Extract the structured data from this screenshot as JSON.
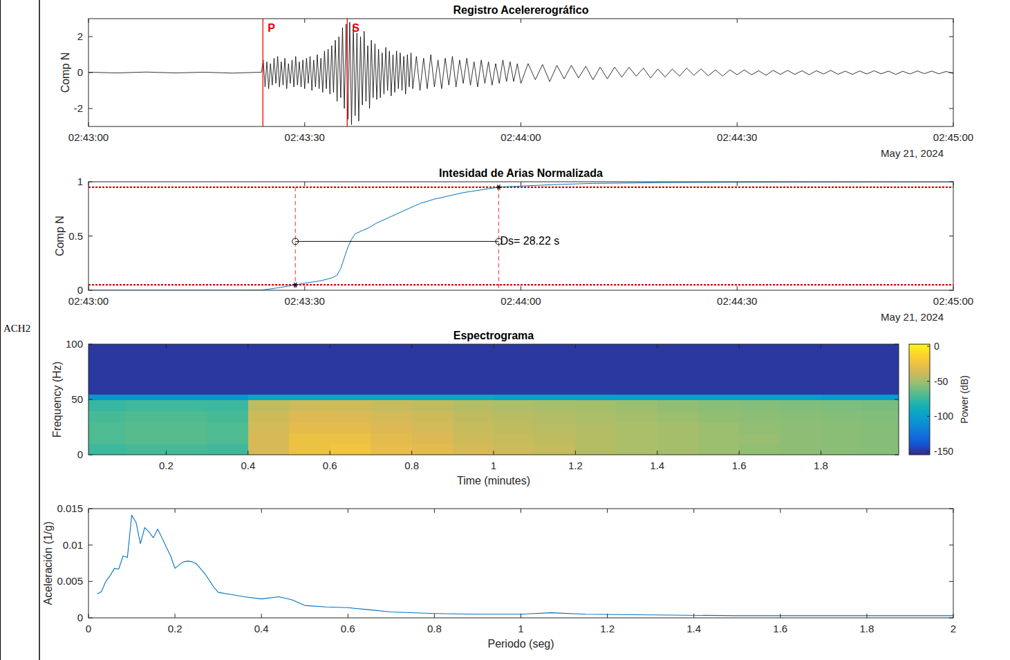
{
  "station": "ACH2",
  "chart_data": [
    {
      "type": "line",
      "title": "Registro Acelererográfico",
      "y_label": "Comp N",
      "date_label": "May 21, 2024",
      "xlim": [
        0,
        120
      ],
      "xticks": [
        {
          "value": 0,
          "label": "02:43:00"
        },
        {
          "value": 30,
          "label": "02:43:30"
        },
        {
          "value": 60,
          "label": "02:44:00"
        },
        {
          "value": 90,
          "label": "02:44:30"
        },
        {
          "value": 120,
          "label": "02:45:00"
        }
      ],
      "ylim": [
        -3,
        3
      ],
      "yticks": [
        -2,
        0,
        2
      ],
      "series": [
        {
          "color": "#000000",
          "x": [
            0,
            4,
            8,
            12,
            16,
            20,
            24,
            24.25,
            24.5,
            24.75,
            25,
            25.25,
            25.5,
            25.75,
            26,
            26.25,
            26.5,
            26.75,
            27,
            27.25,
            27.5,
            27.75,
            28,
            28.25,
            28.5,
            28.75,
            29,
            29.25,
            29.5,
            29.75,
            30,
            30.25,
            30.5,
            30.75,
            31,
            31.25,
            31.5,
            31.75,
            32,
            32.25,
            32.5,
            32.75,
            33,
            33.25,
            33.5,
            33.75,
            34,
            34.25,
            34.5,
            34.75,
            35,
            35.25,
            35.5,
            35.75,
            36,
            36.25,
            36.5,
            36.75,
            37,
            37.25,
            37.5,
            37.75,
            38,
            38.25,
            38.5,
            38.75,
            39,
            39.25,
            39.5,
            39.75,
            40,
            40.25,
            40.5,
            40.75,
            41,
            41.25,
            41.5,
            41.75,
            42,
            42.25,
            42.5,
            42.75,
            43,
            43.25,
            43.5,
            43.75,
            44,
            44.25,
            44.5,
            44.75,
            45,
            45.5,
            46,
            46.5,
            47,
            47.5,
            48,
            48.5,
            49,
            49.5,
            50,
            50.5,
            51,
            51.5,
            52,
            52.5,
            53,
            53.5,
            54,
            54.5,
            55,
            55.5,
            56,
            56.5,
            57,
            57.5,
            58,
            58.5,
            59,
            59.5,
            60,
            61,
            62,
            63,
            64,
            65,
            66,
            67,
            68,
            69,
            70,
            71,
            72,
            73,
            74,
            75,
            76,
            77,
            78,
            79,
            80,
            81,
            82,
            83,
            84,
            85,
            86,
            87,
            88,
            89,
            90,
            91,
            92,
            93,
            94,
            95,
            96,
            97,
            98,
            99,
            100,
            101,
            102,
            103,
            104,
            105,
            106,
            107,
            108,
            109,
            110,
            111,
            112,
            113,
            114,
            115,
            116,
            117,
            118,
            119,
            120
          ],
          "values": [
            0.02,
            -0.02,
            0.03,
            -0.02,
            0.02,
            -0.03,
            0.02,
            0.7,
            -0.8,
            0.6,
            -0.9,
            0.5,
            -0.7,
            0.8,
            -0.6,
            0.9,
            -0.8,
            0.6,
            -0.7,
            0.8,
            -0.9,
            0.5,
            -0.6,
            0.7,
            -0.8,
            0.9,
            -0.7,
            0.6,
            -0.8,
            0.7,
            -0.9,
            0.8,
            -0.6,
            0.9,
            -1.0,
            0.7,
            -0.8,
            1.0,
            -0.9,
            0.8,
            -1.1,
            1.2,
            -0.9,
            1.3,
            -1.2,
            1.5,
            -1.1,
            1.8,
            -1.6,
            2.0,
            -1.4,
            2.5,
            -2.0,
            2.7,
            -2.6,
            2.8,
            -2.9,
            2.6,
            -2.4,
            2.2,
            -2.7,
            2.0,
            -1.8,
            2.3,
            -1.6,
            1.5,
            -2.0,
            1.8,
            -1.4,
            1.6,
            -1.5,
            1.3,
            -1.4,
            1.1,
            -1.2,
            1.4,
            -1.0,
            1.2,
            -1.3,
            1.0,
            -1.1,
            1.2,
            -0.9,
            1.1,
            -1.0,
            0.9,
            -1.2,
            1.0,
            -0.8,
            1.1,
            -0.9,
            0.9,
            -1.0,
            0.8,
            -0.9,
            1.0,
            -0.8,
            0.7,
            -0.9,
            0.8,
            -0.7,
            0.9,
            -0.8,
            0.7,
            -0.6,
            0.8,
            -0.7,
            0.6,
            -0.8,
            0.7,
            -0.6,
            0.6,
            -0.7,
            0.5,
            -0.6,
            0.7,
            -0.5,
            0.6,
            -0.5,
            0.5,
            -0.6,
            0.5,
            -0.4,
            0.45,
            -0.5,
            0.4,
            -0.35,
            0.4,
            -0.3,
            0.35,
            -0.4,
            0.3,
            -0.35,
            0.3,
            -0.25,
            0.3,
            -0.2,
            0.25,
            -0.3,
            0.2,
            -0.25,
            0.2,
            -0.2,
            0.25,
            -0.15,
            0.2,
            -0.18,
            0.15,
            -0.2,
            0.15,
            -0.12,
            0.15,
            -0.12,
            0.1,
            -0.15,
            0.12,
            -0.1,
            0.12,
            -0.1,
            0.1,
            -0.12,
            0.1,
            -0.08,
            0.12,
            -0.1,
            0.08,
            -0.1,
            0.09,
            -0.08,
            0.1,
            -0.07,
            0.08,
            -0.1,
            0.07,
            -0.08,
            0.09,
            -0.06,
            0.08,
            -0.07,
            0.06,
            -0.05
          ]
        }
      ],
      "phases": [
        {
          "label": "P",
          "x": 24.2
        },
        {
          "label": "S",
          "x": 35.9
        }
      ]
    },
    {
      "type": "line",
      "title": "Intesidad de Arias Normalizada",
      "y_label": "Comp N",
      "date_label": "May 21, 2024",
      "xlim": [
        0,
        120
      ],
      "xticks": [
        {
          "value": 0,
          "label": "02:43:00"
        },
        {
          "value": 30,
          "label": "02:43:30"
        },
        {
          "value": 60,
          "label": "02:44:00"
        },
        {
          "value": 90,
          "label": "02:44:30"
        },
        {
          "value": 120,
          "label": "02:45:00"
        }
      ],
      "ylim": [
        0,
        1
      ],
      "yticks": [
        0,
        0.5,
        1
      ],
      "series": [
        {
          "color": "#0072bd",
          "x": [
            0,
            20,
            24,
            25,
            26,
            27,
            28,
            28.7,
            30,
            32,
            33,
            34,
            34.5,
            35,
            35.5,
            36,
            36.5,
            37,
            38,
            39,
            40,
            42,
            44,
            46,
            48,
            50,
            52,
            54,
            56.92,
            60,
            65,
            70,
            80,
            90,
            100,
            120
          ],
          "values": [
            0,
            0,
            0.002,
            0.01,
            0.02,
            0.03,
            0.042,
            0.05,
            0.065,
            0.085,
            0.1,
            0.12,
            0.14,
            0.2,
            0.3,
            0.4,
            0.47,
            0.52,
            0.55,
            0.58,
            0.62,
            0.68,
            0.74,
            0.8,
            0.84,
            0.87,
            0.9,
            0.92,
            0.95,
            0.96,
            0.975,
            0.985,
            0.992,
            0.996,
            0.998,
            1
          ]
        }
      ],
      "thresholds": [
        0.05,
        0.95
      ],
      "duration": {
        "start": 28.7,
        "end": 56.92,
        "level": 0.45,
        "label": "Ds= 28.22 s"
      }
    },
    {
      "type": "heatmap",
      "title": "Espectrograma",
      "x_label": "Time (minutes)",
      "y_label": "Frequency (Hz)",
      "xlim": [
        0.01,
        1.99
      ],
      "xticks": [
        0.2,
        0.4,
        0.6,
        0.8,
        1,
        1.2,
        1.4,
        1.6,
        1.8
      ],
      "ylim": [
        0,
        100
      ],
      "yticks": [
        0,
        50,
        100
      ],
      "x_edges": [
        0.01,
        0.1,
        0.2,
        0.3,
        0.4,
        0.5,
        0.6,
        0.7,
        0.8,
        0.9,
        1,
        1.1,
        1.2,
        1.3,
        1.4,
        1.5,
        1.6,
        1.7,
        1.8,
        1.9,
        1.99
      ],
      "y_edges": [
        0,
        10,
        20,
        30,
        40,
        50,
        55,
        100
      ],
      "cells": [
        [
          -75,
          -72,
          -72,
          -74,
          -35,
          -25,
          -22,
          -28,
          -30,
          -35,
          -38,
          -40,
          -45,
          -48,
          -50,
          -52,
          -54,
          -55,
          -56,
          -57
        ],
        [
          -70,
          -68,
          -68,
          -70,
          -35,
          -25,
          -25,
          -30,
          -33,
          -38,
          -40,
          -42,
          -45,
          -48,
          -50,
          -52,
          -53,
          -55,
          -56,
          -57
        ],
        [
          -70,
          -68,
          -68,
          -70,
          -36,
          -30,
          -30,
          -33,
          -36,
          -40,
          -42,
          -44,
          -46,
          -48,
          -50,
          -52,
          -54,
          -55,
          -56,
          -57
        ],
        [
          -72,
          -70,
          -70,
          -72,
          -38,
          -33,
          -34,
          -36,
          -38,
          -42,
          -44,
          -46,
          -48,
          -50,
          -52,
          -54,
          -55,
          -56,
          -57,
          -58
        ],
        [
          -76,
          -74,
          -74,
          -75,
          -42,
          -38,
          -38,
          -40,
          -42,
          -45,
          -47,
          -49,
          -50,
          -52,
          -54,
          -56,
          -57,
          -58,
          -59,
          -60
        ],
        [
          -105,
          -105,
          -105,
          -105,
          -95,
          -95,
          -95,
          -95,
          -95,
          -95,
          -98,
          -98,
          -98,
          -100,
          -100,
          -100,
          -100,
          -100,
          -102,
          -102
        ],
        [
          -150,
          -150,
          -150,
          -150,
          -150,
          -150,
          -150,
          -150,
          -150,
          -150,
          -150,
          -150,
          -150,
          -150,
          -150,
          -150,
          -150,
          -150,
          -150,
          -150
        ]
      ],
      "colorbar": {
        "label": "Power (dB)",
        "range": [
          -155,
          3
        ],
        "ticks": [
          -150,
          -100,
          -50,
          0
        ]
      }
    },
    {
      "type": "line",
      "x_label": "Periodo (seg)",
      "y_label": "Aceleración (1/g)",
      "xlim": [
        0,
        2
      ],
      "xticks": [
        0,
        0.2,
        0.4,
        0.6,
        0.8,
        1,
        1.2,
        1.4,
        1.6,
        1.8,
        2
      ],
      "ylim": [
        0,
        0.015
      ],
      "yticks": [
        0,
        0.005,
        0.01,
        0.015
      ],
      "series": [
        {
          "color": "#0072bd",
          "x": [
            0.02,
            0.03,
            0.04,
            0.05,
            0.06,
            0.07,
            0.08,
            0.09,
            0.1,
            0.11,
            0.12,
            0.13,
            0.14,
            0.15,
            0.16,
            0.17,
            0.18,
            0.19,
            0.2,
            0.21,
            0.22,
            0.23,
            0.24,
            0.25,
            0.27,
            0.29,
            0.3,
            0.33,
            0.36,
            0.4,
            0.44,
            0.47,
            0.5,
            0.55,
            0.6,
            0.65,
            0.7,
            0.8,
            0.9,
            1,
            1.07,
            1.15,
            1.3,
            1.5,
            1.8,
            2
          ],
          "values": [
            0.0033,
            0.0036,
            0.005,
            0.0058,
            0.0068,
            0.0067,
            0.0085,
            0.0083,
            0.0141,
            0.0131,
            0.0102,
            0.0124,
            0.0118,
            0.011,
            0.0122,
            0.011,
            0.0097,
            0.0085,
            0.0068,
            0.0073,
            0.0077,
            0.0078,
            0.0077,
            0.0074,
            0.006,
            0.0042,
            0.0035,
            0.0032,
            0.0029,
            0.0026,
            0.0029,
            0.0025,
            0.0017,
            0.0015,
            0.0014,
            0.0011,
            0.0008,
            0.0006,
            0.0005,
            0.0005,
            0.0007,
            0.0005,
            0.0004,
            0.0003,
            0.0003,
            0.0003
          ]
        }
      ]
    }
  ]
}
